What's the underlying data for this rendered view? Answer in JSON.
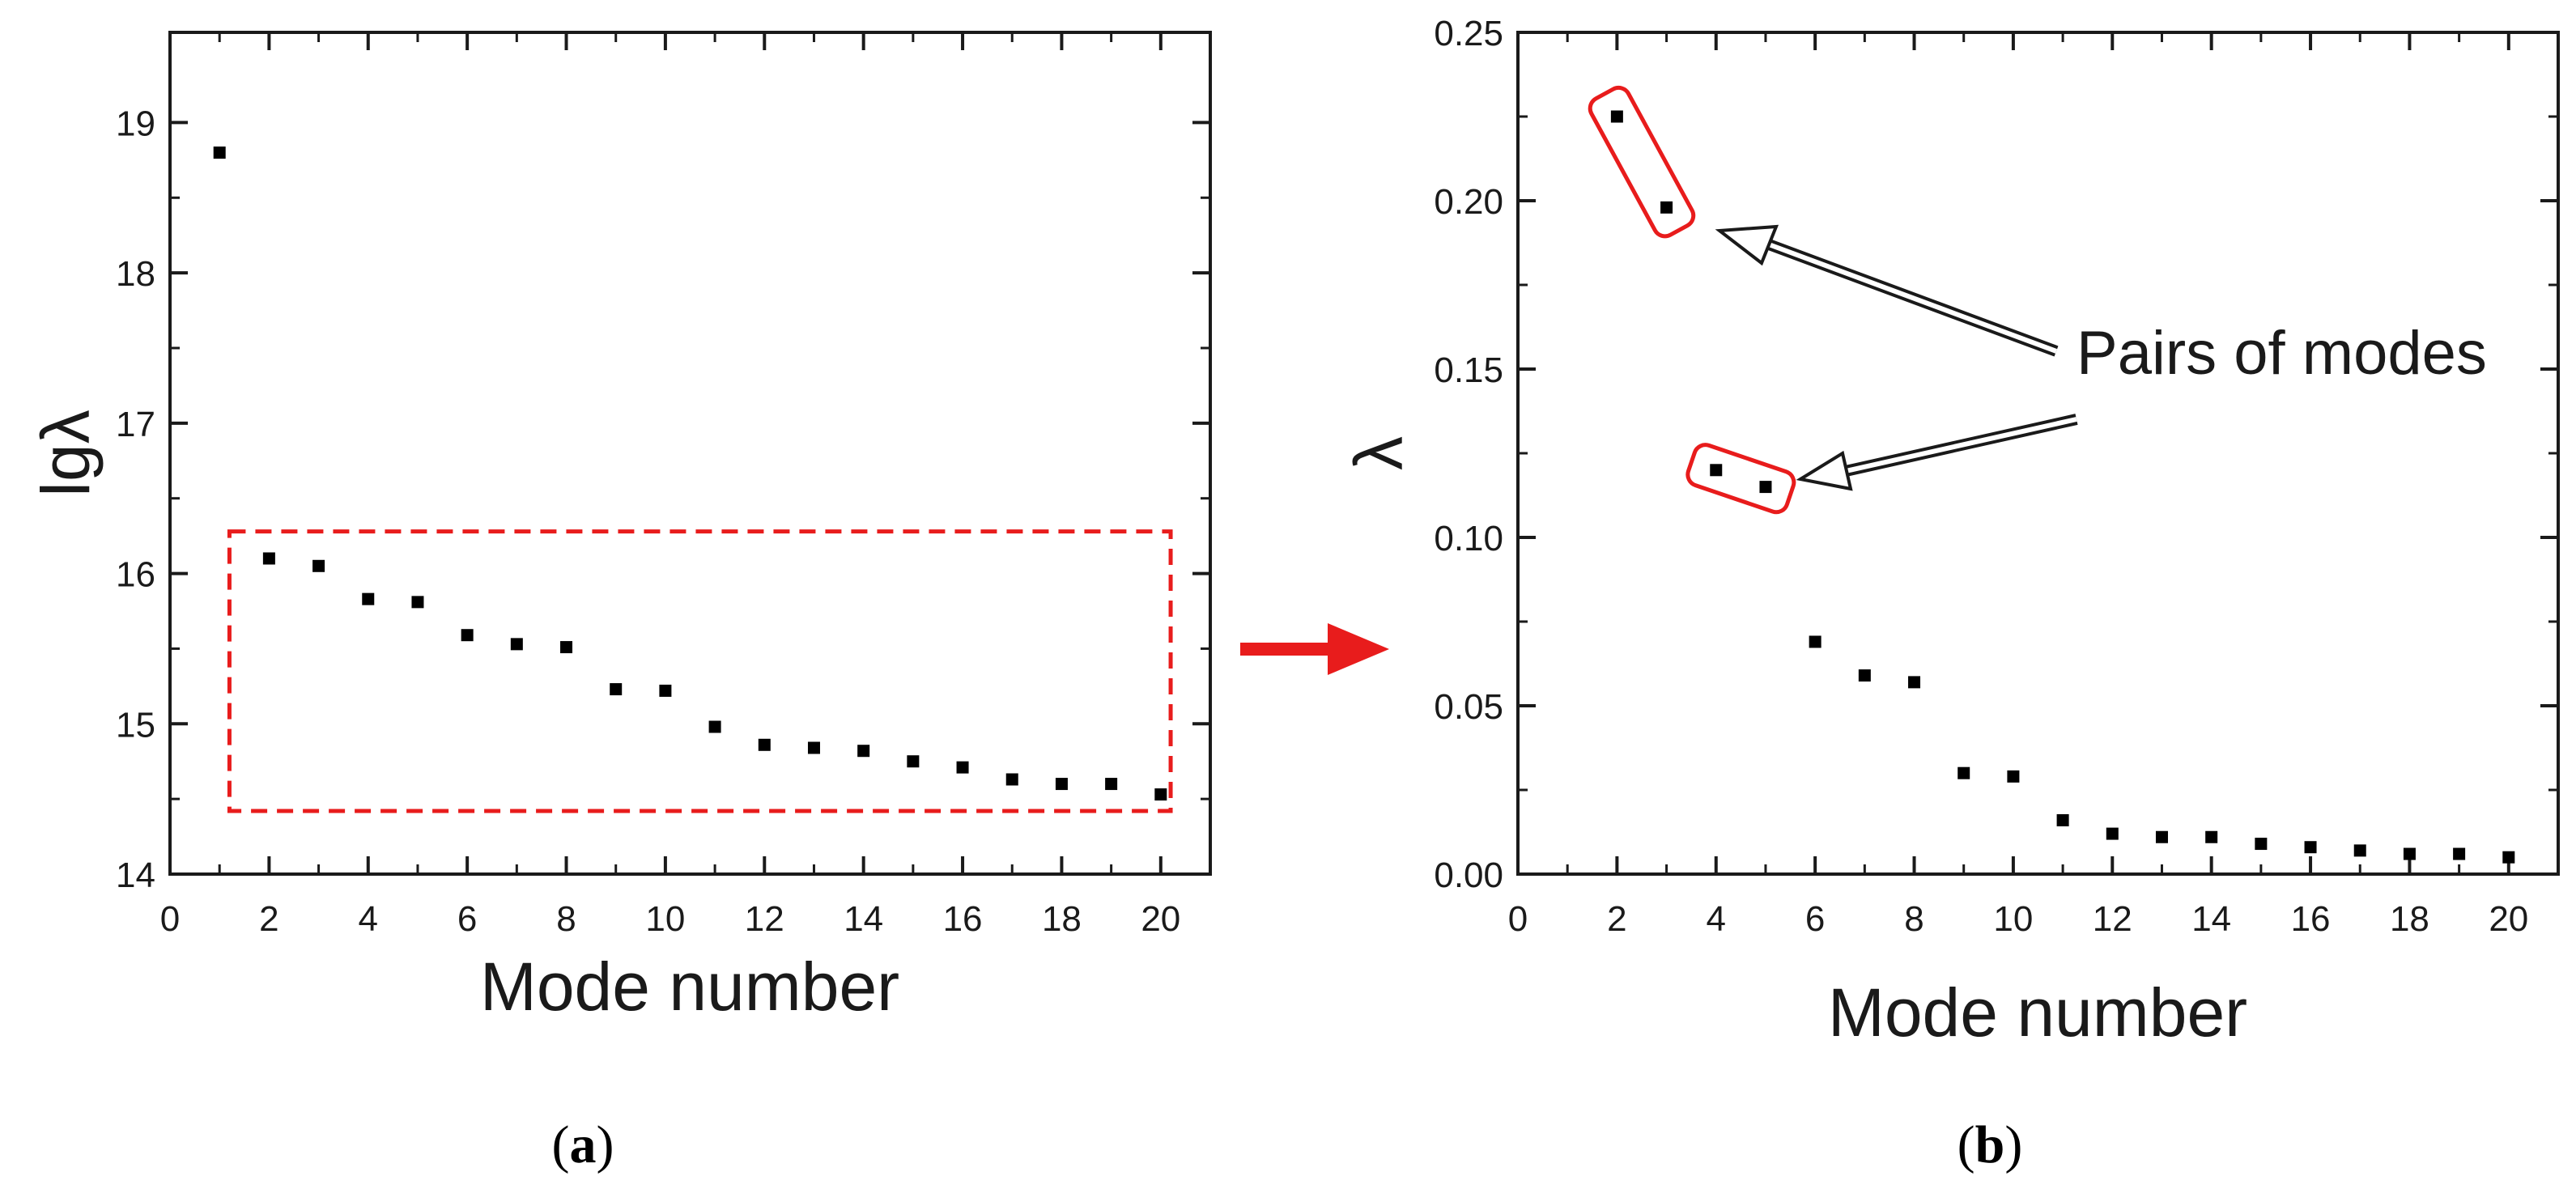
{
  "chart_data": [
    {
      "type": "scatter",
      "panel_label": "a",
      "xlabel": "Mode number",
      "ylabel": "lgλ",
      "xlim": [
        0,
        21
      ],
      "ylim": [
        14,
        19.6
      ],
      "xticks": [
        0,
        2,
        4,
        6,
        8,
        10,
        12,
        14,
        16,
        18,
        20
      ],
      "yticks": [
        14,
        15,
        16,
        17,
        18,
        19
      ],
      "grid": false,
      "series": [
        {
          "name": "lgλ",
          "x": [
            1,
            2,
            3,
            4,
            5,
            6,
            7,
            8,
            9,
            10,
            11,
            12,
            13,
            14,
            15,
            16,
            17,
            18,
            19,
            20
          ],
          "y": [
            18.8,
            16.1,
            16.05,
            15.83,
            15.81,
            15.59,
            15.53,
            15.51,
            15.23,
            15.22,
            14.98,
            14.86,
            14.84,
            14.82,
            14.75,
            14.71,
            14.63,
            14.6,
            14.6,
            14.53
          ]
        }
      ],
      "annotations": [
        {
          "kind": "dashed-rect",
          "x_range": [
            1.2,
            20.2
          ],
          "y_range": [
            14.42,
            16.28
          ],
          "color": "#e81c1c"
        }
      ]
    },
    {
      "type": "scatter",
      "panel_label": "b",
      "xlabel": "Mode number",
      "ylabel": "λ",
      "xlim": [
        0,
        21
      ],
      "ylim": [
        0,
        0.25
      ],
      "xticks": [
        0,
        2,
        4,
        6,
        8,
        10,
        12,
        14,
        16,
        18,
        20
      ],
      "yticks": [
        0.0,
        0.05,
        0.1,
        0.15,
        0.2,
        0.25
      ],
      "ytick_labels": [
        "0.00",
        "0.05",
        "0.10",
        "0.15",
        "0.20",
        "0.25"
      ],
      "grid": false,
      "series": [
        {
          "name": "λ",
          "x": [
            2,
            3,
            4,
            5,
            6,
            7,
            8,
            9,
            10,
            11,
            12,
            13,
            14,
            15,
            16,
            17,
            18,
            19,
            20
          ],
          "y": [
            0.225,
            0.198,
            0.12,
            0.115,
            0.069,
            0.059,
            0.057,
            0.03,
            0.029,
            0.016,
            0.012,
            0.011,
            0.011,
            0.009,
            0.008,
            0.007,
            0.006,
            0.006,
            0.005
          ]
        }
      ],
      "annotations": [
        {
          "kind": "text",
          "text": "Pairs of modes"
        },
        {
          "kind": "rounded-rect",
          "target_modes": [
            2,
            3
          ],
          "color": "#e81c1c"
        },
        {
          "kind": "rounded-rect",
          "target_modes": [
            4,
            5
          ],
          "color": "#e81c1c"
        }
      ]
    }
  ],
  "colors": {
    "marker": "#000000",
    "highlight": "#e81c1c",
    "axis": "#1a1a1a"
  }
}
